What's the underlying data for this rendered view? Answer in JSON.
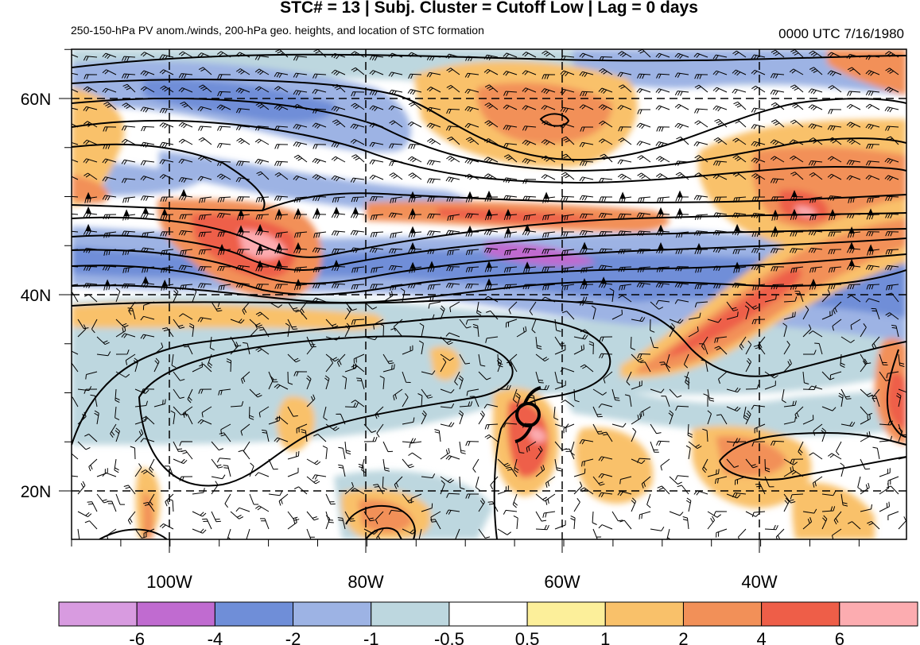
{
  "title": "STC# = 13 | Subj. Cluster = Cutoff Low | Lag = 0 days",
  "subtitle": "250-150-hPa PV anom./winds, 200-hPa geo. heights, and location of STC formation",
  "datetime": "0000 UTC  7/16/1980",
  "lat_labels": [
    "60N",
    "40N",
    "20N"
  ],
  "lon_labels": [
    "100W",
    "80W",
    "60W",
    "40W"
  ],
  "colorbar": {
    "labels": [
      "-6",
      "-4",
      "-2",
      "-1",
      "-0.5",
      "0.5",
      "1",
      "2",
      "4",
      "6"
    ],
    "colors": [
      "#d89be0",
      "#c06bd0",
      "#6f8ed8",
      "#9db3e4",
      "#bdd7df",
      "#ffffff",
      "#fcef9a",
      "#f9c16a",
      "#f29058",
      "#ee5e48",
      "#fcacb0"
    ]
  },
  "map_extent": {
    "lon_min": -110,
    "lon_max": -25,
    "lat_min": 15,
    "lat_max": 65
  },
  "storm_marker": {
    "lon": -64,
    "lat": 27,
    "symbol": "tropical-cyclone"
  }
}
